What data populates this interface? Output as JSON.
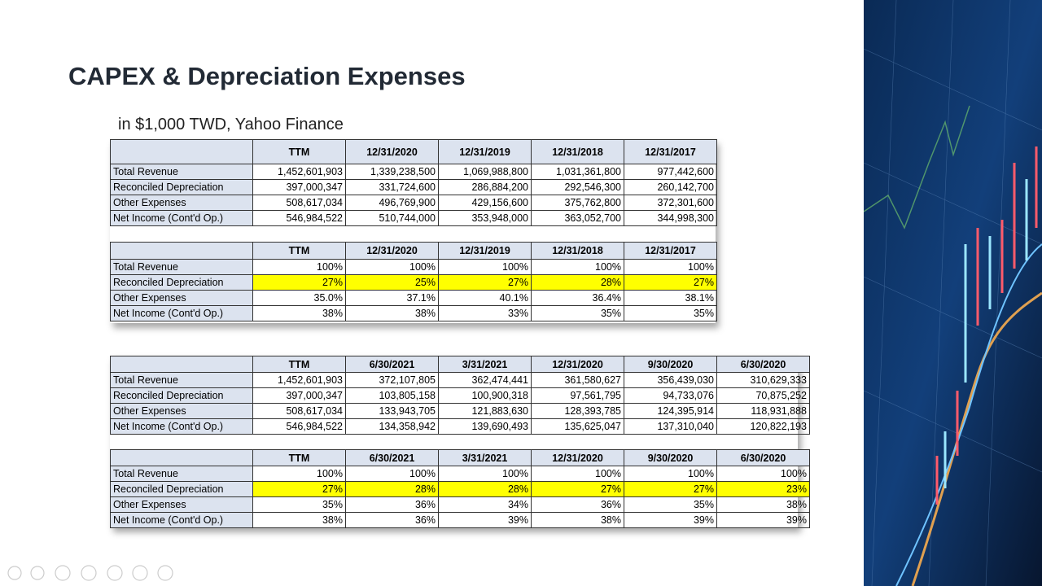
{
  "title": "CAPEX & Depreciation Expenses",
  "subtitle": "in $1,000 TWD,  Yahoo Finance",
  "highlight_color": "#ffff00",
  "highlight_row": 1,
  "tables": [
    {
      "header": [
        "TTM",
        "12/31/2020",
        "12/31/2019",
        "12/31/2018",
        "12/31/2017"
      ],
      "rows": [
        [
          "Total Revenue",
          "1,452,601,903",
          "1,339,238,500",
          "1,069,988,800",
          "1,031,361,800",
          "977,442,600"
        ],
        [
          "Reconciled Depreciation",
          "397,000,347",
          "331,724,600",
          "286,884,200",
          "292,546,300",
          "260,142,700"
        ],
        [
          "Other Expenses",
          "508,617,034",
          "496,769,900",
          "429,156,600",
          "375,762,800",
          "372,301,600"
        ],
        [
          "Net Income (Cont'd Op.)",
          "546,984,522",
          "510,744,000",
          "353,948,000",
          "363,052,700",
          "344,998,300"
        ]
      ]
    },
    {
      "header": [
        "TTM",
        "12/31/2020",
        "12/31/2019",
        "12/31/2018",
        "12/31/2017"
      ],
      "rows": [
        [
          "Total Revenue",
          "100%",
          "100%",
          "100%",
          "100%",
          "100%"
        ],
        [
          "Reconciled Depreciation",
          "27%",
          "25%",
          "27%",
          "28%",
          "27%"
        ],
        [
          "Other Expenses",
          "35.0%",
          "37.1%",
          "40.1%",
          "36.4%",
          "38.1%"
        ],
        [
          "Net Income (Cont'd Op.)",
          "38%",
          "38%",
          "33%",
          "35%",
          "35%"
        ]
      ]
    },
    {
      "header": [
        "TTM",
        "6/30/2021",
        "3/31/2021",
        "12/31/2020",
        "9/30/2020",
        "6/30/2020"
      ],
      "rows": [
        [
          "Total Revenue",
          "1,452,601,903",
          "372,107,805",
          "362,474,441",
          "361,580,627",
          "356,439,030",
          "310,629,333"
        ],
        [
          "Reconciled Depreciation",
          "397,000,347",
          "103,805,158",
          "100,900,318",
          "97,561,795",
          "94,733,076",
          "70,875,252"
        ],
        [
          "Other Expenses",
          "508,617,034",
          "133,943,705",
          "121,883,630",
          "128,393,785",
          "124,395,914",
          "118,931,888"
        ],
        [
          "Net Income (Cont'd Op.)",
          "546,984,522",
          "134,358,942",
          "139,690,493",
          "135,625,047",
          "137,310,040",
          "120,822,193"
        ]
      ]
    },
    {
      "header": [
        "TTM",
        "6/30/2021",
        "3/31/2021",
        "12/31/2020",
        "9/30/2020",
        "6/30/2020"
      ],
      "rows": [
        [
          "Total Revenue",
          "100%",
          "100%",
          "100%",
          "100%",
          "100%",
          "100%"
        ],
        [
          "Reconciled Depreciation",
          "27%",
          "28%",
          "28%",
          "27%",
          "27%",
          "23%"
        ],
        [
          "Other Expenses",
          "35%",
          "36%",
          "34%",
          "36%",
          "35%",
          "38%"
        ],
        [
          "Net Income (Cont'd Op.)",
          "38%",
          "36%",
          "39%",
          "38%",
          "39%",
          "39%"
        ]
      ]
    }
  ]
}
